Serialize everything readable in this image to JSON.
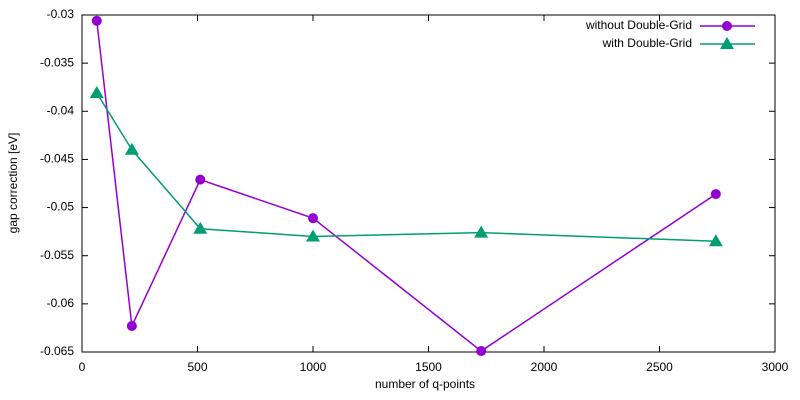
{
  "chart_data": {
    "type": "line",
    "x_label": "number of q-points",
    "y_label": "gap correction [eV]",
    "xlim": [
      0,
      3000
    ],
    "xticks": [
      0,
      500,
      1000,
      1500,
      2000,
      2500,
      3000
    ],
    "ylim": [
      -0.065,
      -0.03
    ],
    "yticks": [
      -0.065,
      -0.06,
      -0.055,
      -0.05,
      -0.045,
      -0.04,
      -0.035,
      -0.03
    ],
    "legend": "top-right",
    "series": [
      {
        "name": "without Double-Grid",
        "color": "#9400d3",
        "marker": "circle",
        "x": [
          64,
          216,
          512,
          1000,
          1728,
          2744
        ],
        "values": [
          -0.0306,
          -0.0623,
          -0.0471,
          -0.0511,
          -0.0649,
          -0.0486
        ]
      },
      {
        "name": "with Double-Grid",
        "color": "#009e73",
        "marker": "triangle",
        "x": [
          64,
          216,
          512,
          1000,
          1728,
          2744
        ],
        "values": [
          -0.0381,
          -0.044,
          -0.0522,
          -0.053,
          -0.0526,
          -0.0535
        ]
      }
    ]
  }
}
